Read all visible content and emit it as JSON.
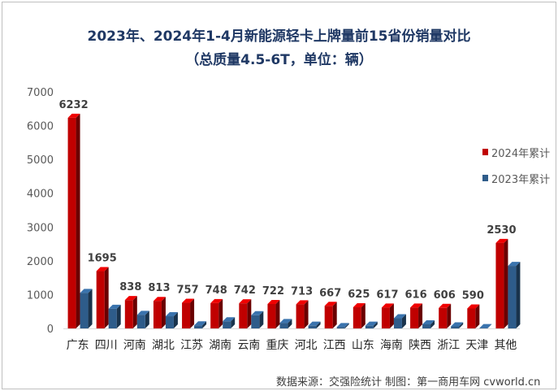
{
  "chart_data": {
    "type": "bar",
    "title": "2023年、2024年1-4月新能源轻卡上牌量前15省份销量对比",
    "subtitle": "（总质量4.5-6T，单位：辆）",
    "categories": [
      "广东",
      "四川",
      "河南",
      "湖北",
      "江苏",
      "湖南",
      "云南",
      "重庆",
      "河北",
      "江西",
      "山东",
      "海南",
      "陕西",
      "浙江",
      "天津",
      "其他"
    ],
    "series": [
      {
        "name": "2024年累计",
        "color": "#c00000",
        "values": [
          6232,
          1695,
          838,
          813,
          757,
          748,
          742,
          722,
          713,
          667,
          625,
          617,
          616,
          606,
          590,
          2530
        ],
        "labels": [
          "6232",
          "1695",
          "838",
          "813",
          "757",
          "748",
          "742",
          "722",
          "713",
          "667",
          "625",
          "617",
          "616",
          "606",
          "590",
          "2530"
        ]
      },
      {
        "name": "2023年累计",
        "color": "#2e5c8a",
        "values": [
          1050,
          580,
          400,
          360,
          90,
          210,
          390,
          160,
          80,
          40,
          80,
          300,
          120,
          60,
          10,
          1850
        ]
      }
    ],
    "ylim": [
      0,
      7000
    ],
    "yticks": [
      0,
      1000,
      2000,
      3000,
      4000,
      5000,
      6000,
      7000
    ],
    "grid": false,
    "legend_position": "right"
  },
  "footer": "数据来源：交强险统计 制图：第一商用车网 cvworld.cn"
}
